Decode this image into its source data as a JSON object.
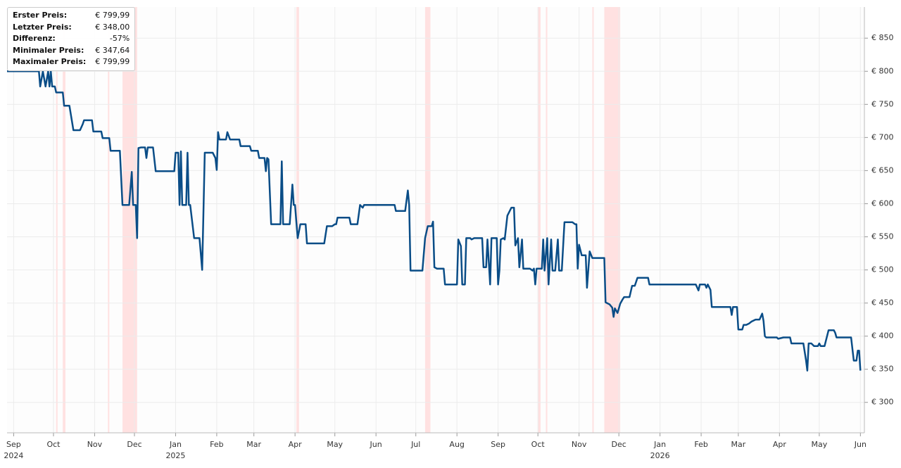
{
  "chart_data": {
    "type": "line",
    "xlim": [
      -5,
      641
    ],
    "xticks": [
      {
        "value": 0,
        "label": "Sep"
      },
      {
        "value": 30,
        "label": "Oct"
      },
      {
        "value": 61,
        "label": "Nov"
      },
      {
        "value": 91,
        "label": "Dec"
      },
      {
        "value": 122,
        "label": "Jan"
      },
      {
        "value": 153,
        "label": "Feb"
      },
      {
        "value": 181,
        "label": "Mar"
      },
      {
        "value": 212,
        "label": "Apr"
      },
      {
        "value": 242,
        "label": "May"
      },
      {
        "value": 273,
        "label": "Jun"
      },
      {
        "value": 303,
        "label": "Jul"
      },
      {
        "value": 334,
        "label": "Aug"
      },
      {
        "value": 365,
        "label": "Sep"
      },
      {
        "value": 395,
        "label": "Oct"
      },
      {
        "value": 426,
        "label": "Nov"
      },
      {
        "value": 456,
        "label": "Dec"
      },
      {
        "value": 487,
        "label": "Jan"
      },
      {
        "value": 518,
        "label": "Feb"
      },
      {
        "value": 546,
        "label": "Mar"
      },
      {
        "value": 577,
        "label": "Apr"
      },
      {
        "value": 607,
        "label": "May"
      },
      {
        "value": 638,
        "label": "Jun"
      }
    ],
    "xtick_years": [
      {
        "value": 0,
        "label": "2024"
      },
      {
        "value": 122,
        "label": "2025"
      },
      {
        "value": 487,
        "label": "2026"
      }
    ],
    "ylim": [
      254,
      897
    ],
    "yticks": [
      {
        "value": 300,
        "label": "€ 300"
      },
      {
        "value": 350,
        "label": "€ 350"
      },
      {
        "value": 400,
        "label": "€ 400"
      },
      {
        "value": 450,
        "label": "€ 450"
      },
      {
        "value": 500,
        "label": "€ 500"
      },
      {
        "value": 550,
        "label": "€ 550"
      },
      {
        "value": 600,
        "label": "€ 600"
      },
      {
        "value": 650,
        "label": "€ 650"
      },
      {
        "value": 700,
        "label": "€ 700"
      },
      {
        "value": 750,
        "label": "€ 750"
      },
      {
        "value": 800,
        "label": "€ 800"
      },
      {
        "value": 850,
        "label": "€ 850"
      }
    ],
    "grid": true,
    "band_color": "#ffe1e1",
    "bands": [
      [
        32,
        33
      ],
      [
        37,
        39
      ],
      [
        71,
        72
      ],
      [
        82,
        93
      ],
      [
        213,
        215
      ],
      [
        310,
        314
      ],
      [
        395,
        397
      ],
      [
        401,
        402
      ],
      [
        436,
        437
      ],
      [
        445,
        457
      ]
    ],
    "x": [
      -5,
      19,
      20,
      22,
      24,
      26,
      27,
      28,
      29,
      31,
      32,
      37,
      38,
      42,
      45,
      50,
      52,
      53,
      59,
      60,
      66,
      67,
      72,
      73,
      80,
      82,
      87,
      89,
      90,
      92,
      93,
      94,
      96,
      99,
      100,
      101,
      105,
      107,
      121,
      122,
      124,
      125,
      126,
      127,
      130,
      131,
      132,
      133,
      136,
      140,
      142,
      144,
      150,
      152,
      153,
      154,
      155,
      160,
      161,
      163,
      170,
      171,
      178,
      179,
      184,
      185,
      189,
      190,
      191,
      192,
      194,
      201,
      202,
      203,
      208,
      210,
      211,
      212,
      214,
      216,
      220,
      221,
      234,
      236,
      240,
      242,
      243,
      244,
      253,
      254,
      259,
      261,
      263,
      264,
      287,
      288,
      294,
      295,
      297,
      298,
      299,
      307,
      308,
      310,
      312,
      315,
      316,
      317,
      319,
      324,
      325,
      334,
      335,
      337,
      338,
      340,
      341,
      344,
      345,
      347,
      353,
      354,
      356,
      357,
      359,
      360,
      364,
      365,
      366,
      367,
      369,
      370,
      372,
      375,
      377,
      378,
      380,
      381,
      383,
      384,
      389,
      391,
      392,
      393,
      394,
      398,
      399,
      400,
      402,
      403,
      405,
      406,
      408,
      410,
      411,
      413,
      415,
      421,
      423,
      424,
      425,
      426,
      428,
      431,
      432,
      434,
      436,
      445,
      446,
      449,
      451,
      452,
      453,
      455,
      457,
      459,
      460,
      464,
      466,
      468,
      470,
      478,
      479,
      514,
      516,
      517,
      521,
      522,
      523,
      525,
      526,
      540,
      541,
      542,
      545,
      546,
      549,
      550,
      552,
      554,
      556,
      559,
      562,
      564,
      565,
      566,
      567,
      575,
      576,
      580,
      585,
      586,
      595,
      597,
      598,
      599,
      601,
      603,
      606,
      607,
      608,
      611,
      614,
      618,
      619,
      620,
      631,
      633,
      635,
      636,
      637,
      638
    ],
    "series": [
      {
        "color": "#0a4d87",
        "values": [
          800,
          800,
          777,
          800,
          777,
          800,
          777,
          800,
          777,
          777,
          768,
          768,
          748,
          748,
          711,
          711,
          720,
          726,
          726,
          709,
          709,
          699,
          699,
          680,
          680,
          598,
          598,
          648,
          598,
          598,
          548,
          684,
          685,
          685,
          669,
          685,
          685,
          649,
          649,
          677,
          677,
          598,
          679,
          598,
          598,
          677,
          598,
          598,
          548,
          548,
          500,
          677,
          677,
          669,
          651,
          708,
          697,
          697,
          708,
          697,
          697,
          687,
          687,
          680,
          680,
          669,
          669,
          649,
          669,
          667,
          569,
          569,
          664,
          569,
          569,
          629,
          598,
          598,
          548,
          569,
          569,
          540,
          540,
          566,
          566,
          569,
          569,
          579,
          579,
          569,
          569,
          598,
          594,
          598,
          598,
          589,
          589,
          589,
          620,
          598,
          499,
          499,
          499,
          548,
          566,
          566,
          573,
          504,
          502,
          502,
          478,
          478,
          546,
          536,
          478,
          478,
          548,
          548,
          546,
          548,
          548,
          504,
          504,
          546,
          478,
          548,
          548,
          478,
          499,
          546,
          548,
          546,
          582,
          594,
          594,
          537,
          548,
          504,
          546,
          502,
          502,
          499,
          502,
          478,
          502,
          502,
          546,
          499,
          548,
          478,
          546,
          499,
          499,
          546,
          499,
          499,
          572,
          572,
          569,
          569,
          502,
          538,
          522,
          522,
          473,
          528,
          518,
          518,
          451,
          448,
          443,
          429,
          442,
          435,
          449,
          456,
          459,
          459,
          476,
          476,
          488,
          488,
          478,
          478,
          469,
          478,
          478,
          473,
          478,
          470,
          444,
          444,
          432,
          444,
          444,
          410,
          410,
          417,
          417,
          419,
          422,
          425,
          425,
          434,
          423,
          400,
          398,
          398,
          396,
          398,
          398,
          389,
          389,
          364,
          348,
          389,
          389,
          385,
          385,
          389,
          385,
          385,
          409,
          409,
          405,
          398,
          398,
          363,
          363,
          378,
          378,
          348
        ]
      }
    ]
  },
  "info_box": {
    "rows": [
      {
        "label": "Erster Preis:",
        "value": "€ 799,99"
      },
      {
        "label": "Letzter Preis:",
        "value": "€ 348,00"
      },
      {
        "label": "Differenz:",
        "value": "-57%"
      },
      {
        "label": "Minimaler Preis:",
        "value": "€ 347,64"
      },
      {
        "label": "Maximaler Preis:",
        "value": "€ 799,99"
      }
    ]
  }
}
